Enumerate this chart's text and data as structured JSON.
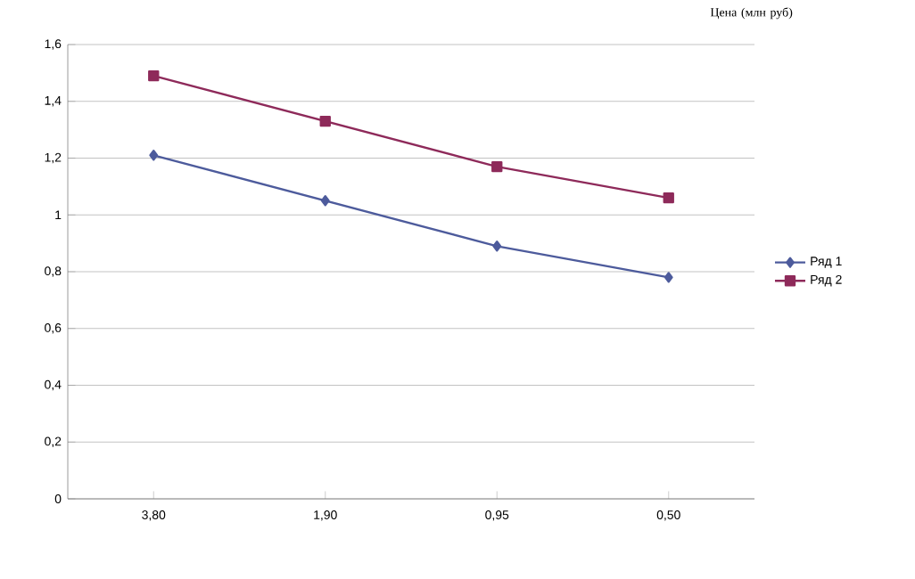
{
  "chart_data": {
    "type": "line",
    "title": "Цена (млн руб)",
    "categories": [
      "3,80",
      "1,90",
      "0,95",
      "0,50"
    ],
    "series": [
      {
        "name": "Ряд 1",
        "color": "#4d5b9c",
        "marker": "diamond",
        "values": [
          1.21,
          1.05,
          0.89,
          0.78
        ]
      },
      {
        "name": "Ряд 2",
        "color": "#8e2a5a",
        "marker": "square",
        "values": [
          1.49,
          1.33,
          1.17,
          1.06
        ]
      }
    ],
    "ylim": [
      0,
      1.6
    ],
    "yticks": [
      0,
      {
        "value": 0.2,
        "label": "0,2"
      },
      {
        "value": 0.4,
        "label": "0,4"
      },
      {
        "value": 0.6,
        "label": "0,6"
      },
      {
        "value": 0.8,
        "label": "0,8"
      },
      1,
      {
        "value": 1.2,
        "label": "1,2"
      },
      {
        "value": 1.4,
        "label": "1,4"
      },
      {
        "value": 1.6,
        "label": "1,6"
      }
    ],
    "grid": "y",
    "legend": "right",
    "line_style": "solid"
  }
}
